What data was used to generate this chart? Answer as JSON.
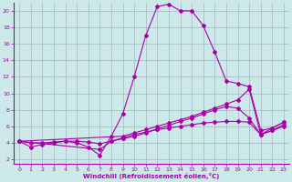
{
  "xlabel": "Windchill (Refroidissement éolien,°C)",
  "background_color": "#cce8e8",
  "line_color": "#aa00aa",
  "grid_color": "#99aabb",
  "xlim": [
    -0.5,
    23.5
  ],
  "ylim": [
    1.5,
    21
  ],
  "yticks": [
    2,
    4,
    6,
    8,
    10,
    12,
    14,
    16,
    18,
    20
  ],
  "xticks": [
    0,
    1,
    2,
    3,
    4,
    5,
    6,
    7,
    8,
    9,
    10,
    11,
    12,
    13,
    14,
    15,
    16,
    17,
    18,
    19,
    20,
    21,
    22,
    23
  ],
  "line1_x": [
    0,
    1,
    2,
    3,
    4,
    5,
    6,
    7,
    8,
    9,
    10,
    11,
    12,
    13,
    14,
    15,
    16,
    17,
    18,
    19,
    20,
    21,
    22,
    23
  ],
  "line1_y": [
    4.2,
    3.5,
    3.8,
    4.0,
    4.2,
    4.0,
    3.5,
    2.5,
    4.8,
    7.5,
    12.0,
    17.0,
    20.5,
    20.8,
    20.0,
    20.0,
    18.2,
    15.0,
    11.5,
    11.2,
    10.8,
    5.5,
    5.8,
    6.5
  ],
  "line2_x": [
    0,
    9,
    10,
    11,
    12,
    13,
    14,
    15,
    16,
    17,
    18,
    19,
    20,
    21,
    22,
    23
  ],
  "line2_y": [
    4.2,
    4.8,
    5.2,
    5.6,
    6.0,
    6.4,
    6.8,
    7.2,
    7.7,
    8.2,
    8.7,
    9.2,
    10.5,
    5.0,
    5.8,
    6.5
  ],
  "line3_x": [
    0,
    7,
    8,
    9,
    10,
    11,
    12,
    13,
    14,
    15,
    16,
    17,
    18,
    19,
    20,
    21,
    22,
    23
  ],
  "line3_y": [
    4.2,
    3.2,
    4.2,
    4.5,
    4.8,
    5.2,
    5.7,
    6.1,
    6.6,
    7.0,
    7.5,
    8.0,
    8.4,
    8.2,
    7.0,
    5.0,
    5.5,
    6.2
  ],
  "line4_x": [
    0,
    1,
    2,
    3,
    4,
    5,
    6,
    7,
    8,
    9,
    10,
    11,
    12,
    13,
    14,
    15,
    16,
    17,
    18,
    19,
    20,
    21,
    22,
    23
  ],
  "line4_y": [
    4.2,
    4.0,
    4.0,
    4.1,
    4.2,
    4.2,
    4.1,
    3.9,
    4.2,
    4.6,
    5.0,
    5.3,
    5.6,
    5.8,
    6.0,
    6.2,
    6.4,
    6.5,
    6.6,
    6.6,
    6.5,
    5.0,
    5.5,
    6.0
  ]
}
